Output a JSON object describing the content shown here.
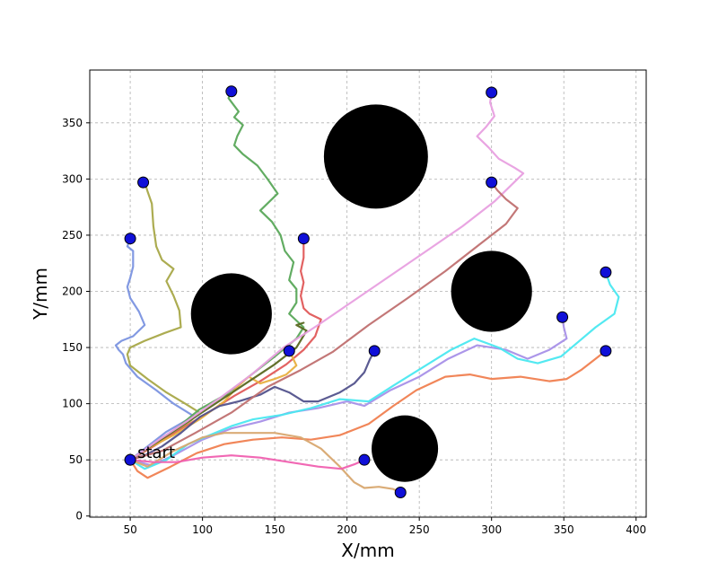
{
  "chart_data": {
    "type": "line",
    "xlabel": "X/mm",
    "ylabel": "Y/mm",
    "xlim": [
      22,
      407
    ],
    "ylim": [
      -1,
      397
    ],
    "xticks": [
      0,
      50,
      100,
      150,
      200,
      250,
      300,
      350,
      400
    ],
    "yticks": [
      0,
      50,
      100,
      150,
      200,
      250,
      300,
      350
    ],
    "grid": true,
    "start": {
      "label": "start",
      "x": 50,
      "y": 50
    },
    "obstacles": [
      {
        "cx": 120,
        "cy": 180,
        "r": 28
      },
      {
        "cx": 220,
        "cy": 320,
        "r": 36
      },
      {
        "cx": 300,
        "cy": 200,
        "r": 28
      },
      {
        "cx": 240,
        "cy": 60,
        "r": 23
      }
    ],
    "series": [
      {
        "color": "#7b93e0",
        "goal": [
          50,
          247
        ],
        "points": [
          [
            50,
            50
          ],
          [
            62,
            62
          ],
          [
            75,
            75
          ],
          [
            90,
            86
          ],
          [
            95,
            88
          ],
          [
            80,
            100
          ],
          [
            68,
            112
          ],
          [
            55,
            124
          ],
          [
            47,
            136
          ],
          [
            45,
            144
          ],
          [
            42,
            148
          ],
          [
            40,
            152
          ],
          [
            44,
            156
          ],
          [
            52,
            160
          ],
          [
            60,
            170
          ],
          [
            56,
            182
          ],
          [
            50,
            194
          ],
          [
            48,
            204
          ],
          [
            50,
            212
          ],
          [
            52,
            222
          ],
          [
            52,
            236
          ],
          [
            48,
            240
          ],
          [
            50,
            247
          ]
        ]
      },
      {
        "color": "#a8a848",
        "goal": [
          59,
          297
        ],
        "points": [
          [
            50,
            50
          ],
          [
            62,
            60
          ],
          [
            78,
            72
          ],
          [
            92,
            85
          ],
          [
            98,
            92
          ],
          [
            88,
            100
          ],
          [
            75,
            110
          ],
          [
            62,
            122
          ],
          [
            50,
            134
          ],
          [
            48,
            144
          ],
          [
            50,
            150
          ],
          [
            60,
            156
          ],
          [
            74,
            163
          ],
          [
            85,
            168
          ],
          [
            84,
            183
          ],
          [
            80,
            196
          ],
          [
            75,
            209
          ],
          [
            80,
            220
          ],
          [
            72,
            228
          ],
          [
            68,
            240
          ],
          [
            66,
            258
          ],
          [
            65,
            278
          ],
          [
            62,
            289
          ],
          [
            60,
            297
          ]
        ]
      },
      {
        "color": "#5aa85a",
        "goal": [
          120,
          378
        ],
        "points": [
          [
            50,
            50
          ],
          [
            65,
            62
          ],
          [
            82,
            78
          ],
          [
            98,
            95
          ],
          [
            116,
            108
          ],
          [
            132,
            124
          ],
          [
            150,
            142
          ],
          [
            165,
            158
          ],
          [
            170,
            168
          ],
          [
            160,
            180
          ],
          [
            165,
            190
          ],
          [
            165,
            202
          ],
          [
            160,
            210
          ],
          [
            163,
            226
          ],
          [
            157,
            236
          ],
          [
            154,
            250
          ],
          [
            148,
            262
          ],
          [
            140,
            272
          ],
          [
            152,
            287
          ],
          [
            145,
            300
          ],
          [
            138,
            312
          ],
          [
            128,
            322
          ],
          [
            122,
            330
          ],
          [
            124,
            338
          ],
          [
            128,
            348
          ],
          [
            122,
            355
          ],
          [
            125,
            360
          ],
          [
            118,
            372
          ],
          [
            120,
            378
          ]
        ]
      },
      {
        "color": "#e05a5a",
        "goal": [
          170,
          247
        ],
        "points": [
          [
            50,
            50
          ],
          [
            66,
            62
          ],
          [
            86,
            78
          ],
          [
            105,
            93
          ],
          [
            122,
            107
          ],
          [
            140,
            120
          ],
          [
            158,
            135
          ],
          [
            170,
            148
          ],
          [
            178,
            160
          ],
          [
            182,
            175
          ],
          [
            174,
            180
          ],
          [
            170,
            185
          ],
          [
            168,
            196
          ],
          [
            170,
            208
          ],
          [
            168,
            218
          ],
          [
            170,
            230
          ],
          [
            170,
            242
          ],
          [
            170,
            247
          ]
        ]
      },
      {
        "color": "#e8b040",
        "goal": [
          160,
          147
        ],
        "points": [
          [
            50,
            50
          ],
          [
            62,
            60
          ],
          [
            80,
            72
          ],
          [
            98,
            86
          ],
          [
            115,
            102
          ],
          [
            125,
            116
          ],
          [
            132,
            124
          ],
          [
            140,
            118
          ],
          [
            150,
            122
          ],
          [
            158,
            126
          ],
          [
            165,
            134
          ],
          [
            162,
            142
          ],
          [
            160,
            147
          ]
        ]
      },
      {
        "color": "#52528c",
        "goal": [
          219,
          147
        ],
        "points": [
          [
            50,
            50
          ],
          [
            60,
            54
          ],
          [
            72,
            62
          ],
          [
            85,
            74
          ],
          [
            98,
            88
          ],
          [
            112,
            98
          ],
          [
            125,
            102
          ],
          [
            140,
            108
          ],
          [
            150,
            115
          ],
          [
            160,
            110
          ],
          [
            170,
            102
          ],
          [
            180,
            102
          ],
          [
            195,
            110
          ],
          [
            205,
            118
          ],
          [
            212,
            128
          ],
          [
            216,
            140
          ],
          [
            219,
            147
          ]
        ]
      },
      {
        "color": "#586820",
        "goal": [
          50,
          50
        ],
        "points": [
          [
            50,
            50
          ],
          [
            70,
            67
          ],
          [
            90,
            84
          ],
          [
            110,
            101
          ],
          [
            130,
            118
          ],
          [
            150,
            135
          ],
          [
            165,
            150
          ],
          [
            172,
            165
          ],
          [
            165,
            170
          ],
          [
            170,
            172
          ]
        ]
      },
      {
        "color": "#e8a0e0",
        "goal": [
          300,
          377
        ],
        "points": [
          [
            50,
            50
          ],
          [
            70,
            68
          ],
          [
            90,
            85
          ],
          [
            112,
            105
          ],
          [
            134,
            126
          ],
          [
            156,
            150
          ],
          [
            180,
            170
          ],
          [
            205,
            192
          ],
          [
            230,
            214
          ],
          [
            255,
            236
          ],
          [
            280,
            258
          ],
          [
            302,
            280
          ],
          [
            322,
            305
          ],
          [
            316,
            310
          ],
          [
            305,
            318
          ],
          [
            298,
            328
          ],
          [
            290,
            338
          ],
          [
            296,
            346
          ],
          [
            302,
            356
          ],
          [
            299,
            368
          ],
          [
            300,
            377
          ]
        ]
      },
      {
        "color": "#c07070",
        "goal": [
          300,
          297
        ],
        "points": [
          [
            50,
            50
          ],
          [
            72,
            58
          ],
          [
            95,
            74
          ],
          [
            120,
            92
          ],
          [
            145,
            115
          ],
          [
            168,
            130
          ],
          [
            190,
            146
          ],
          [
            215,
            170
          ],
          [
            242,
            194
          ],
          [
            268,
            218
          ],
          [
            292,
            242
          ],
          [
            310,
            260
          ],
          [
            318,
            274
          ],
          [
            310,
            282
          ],
          [
            304,
            290
          ],
          [
            300,
            297
          ]
        ]
      },
      {
        "color": "#a890e8",
        "goal": [
          349,
          177
        ],
        "points": [
          [
            50,
            50
          ],
          [
            65,
            45
          ],
          [
            80,
            54
          ],
          [
            100,
            68
          ],
          [
            120,
            78
          ],
          [
            140,
            84
          ],
          [
            160,
            92
          ],
          [
            180,
            96
          ],
          [
            200,
            102
          ],
          [
            212,
            98
          ],
          [
            230,
            112
          ],
          [
            250,
            124
          ],
          [
            270,
            140
          ],
          [
            290,
            152
          ],
          [
            310,
            148
          ],
          [
            325,
            140
          ],
          [
            340,
            148
          ],
          [
            352,
            158
          ],
          [
            350,
            168
          ],
          [
            349,
            177
          ]
        ]
      },
      {
        "color": "#4ae8f0",
        "goal": [
          379,
          217
        ],
        "points": [
          [
            50,
            50
          ],
          [
            60,
            42
          ],
          [
            75,
            50
          ],
          [
            90,
            64
          ],
          [
            105,
            72
          ],
          [
            120,
            80
          ],
          [
            135,
            86
          ],
          [
            155,
            90
          ],
          [
            175,
            96
          ],
          [
            195,
            104
          ],
          [
            215,
            102
          ],
          [
            232,
            116
          ],
          [
            252,
            132
          ],
          [
            272,
            148
          ],
          [
            288,
            158
          ],
          [
            305,
            150
          ],
          [
            318,
            140
          ],
          [
            332,
            136
          ],
          [
            348,
            142
          ],
          [
            360,
            155
          ],
          [
            372,
            168
          ],
          [
            385,
            180
          ],
          [
            388,
            195
          ],
          [
            382,
            206
          ],
          [
            379,
            217
          ]
        ]
      },
      {
        "color": "#f08050",
        "goal": [
          379,
          147
        ],
        "points": [
          [
            50,
            50
          ],
          [
            55,
            40
          ],
          [
            62,
            34
          ],
          [
            78,
            44
          ],
          [
            96,
            56
          ],
          [
            115,
            64
          ],
          [
            135,
            68
          ],
          [
            155,
            70
          ],
          [
            175,
            68
          ],
          [
            195,
            72
          ],
          [
            215,
            82
          ],
          [
            232,
            98
          ],
          [
            248,
            112
          ],
          [
            268,
            124
          ],
          [
            285,
            126
          ],
          [
            300,
            122
          ],
          [
            320,
            124
          ],
          [
            340,
            120
          ],
          [
            352,
            122
          ],
          [
            362,
            130
          ],
          [
            372,
            140
          ],
          [
            379,
            147
          ]
        ]
      },
      {
        "color": "#d8a870",
        "goal": [
          237,
          21
        ],
        "points": [
          [
            50,
            50
          ],
          [
            62,
            44
          ],
          [
            80,
            58
          ],
          [
            100,
            70
          ],
          [
            115,
            74
          ],
          [
            130,
            74
          ],
          [
            150,
            74
          ],
          [
            168,
            70
          ],
          [
            182,
            60
          ],
          [
            195,
            44
          ],
          [
            205,
            30
          ],
          [
            212,
            25
          ],
          [
            222,
            26
          ],
          [
            232,
            24
          ],
          [
            237,
            21
          ]
        ]
      },
      {
        "color": "#f060b0",
        "goal": [
          212,
          50
        ],
        "points": [
          [
            50,
            50
          ],
          [
            66,
            48
          ],
          [
            82,
            48
          ],
          [
            100,
            52
          ],
          [
            120,
            54
          ],
          [
            140,
            52
          ],
          [
            160,
            48
          ],
          [
            180,
            44
          ],
          [
            196,
            42
          ],
          [
            205,
            46
          ],
          [
            212,
            50
          ]
        ]
      }
    ]
  }
}
